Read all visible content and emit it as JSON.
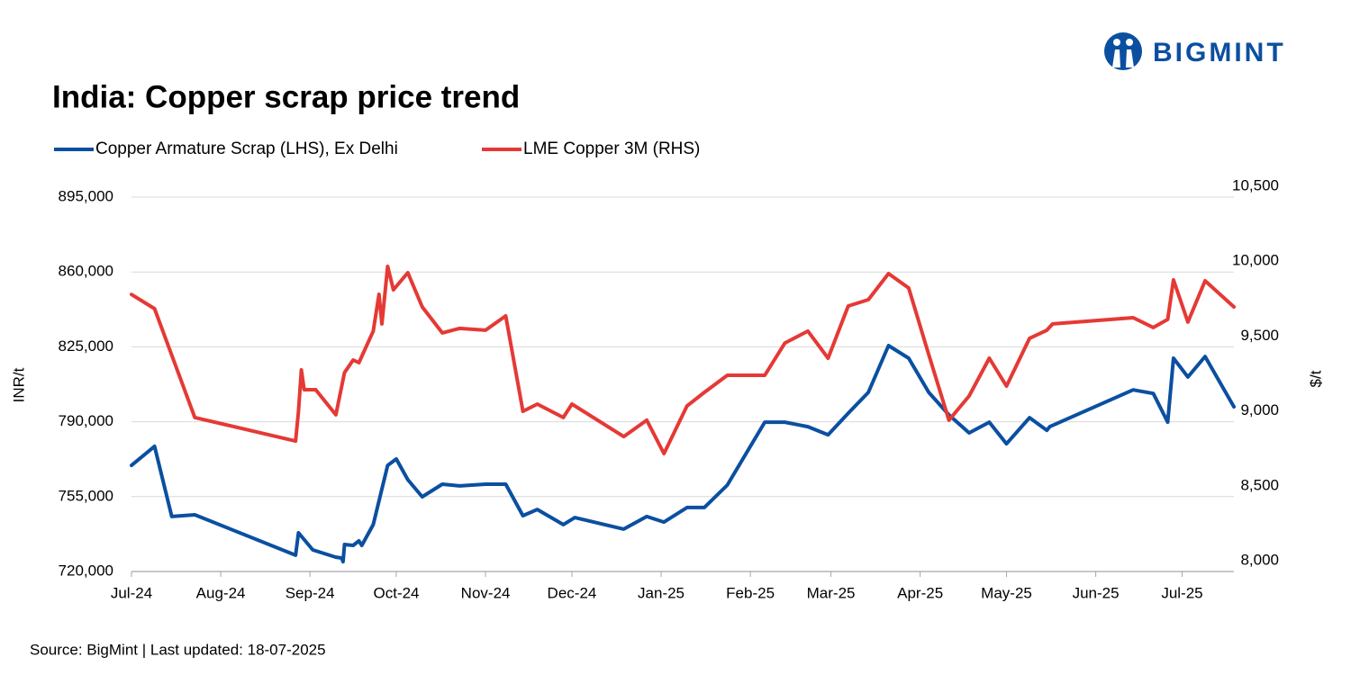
{
  "brand": "BIGMINT",
  "chart_data": {
    "type": "line",
    "title": "India: Copper scrap price trend",
    "source": "Source: BigMint | Last updated: 18-07-2025",
    "ylabel": "INR/t",
    "y2label": "$/t",
    "xlim": [
      0,
      383
    ],
    "xticks": [
      {
        "value": 0,
        "label": "Jul-24"
      },
      {
        "value": 31,
        "label": "Aug-24"
      },
      {
        "value": 62,
        "label": "Sep-24"
      },
      {
        "value": 92,
        "label": "Oct-24"
      },
      {
        "value": 123,
        "label": "Nov-24"
      },
      {
        "value": 153,
        "label": "Dec-24"
      },
      {
        "value": 184,
        "label": "Jan-25"
      },
      {
        "value": 215,
        "label": "Feb-25"
      },
      {
        "value": 243,
        "label": "Mar-25"
      },
      {
        "value": 274,
        "label": "Apr-25"
      },
      {
        "value": 304,
        "label": "May-25"
      },
      {
        "value": 335,
        "label": "Jun-25"
      },
      {
        "value": 365,
        "label": "Jul-25"
      }
    ],
    "ylim": [
      720000,
      895000
    ],
    "yticks": [
      {
        "value": 720000,
        "label": "720,000"
      },
      {
        "value": 755000,
        "label": "755,000"
      },
      {
        "value": 790000,
        "label": "790,000"
      },
      {
        "value": 825000,
        "label": "825,000"
      },
      {
        "value": 860000,
        "label": "860,000"
      },
      {
        "value": 895000,
        "label": "895,000"
      }
    ],
    "y2lim": [
      8000,
      10500
    ],
    "y2ticks": [
      {
        "value": 8000,
        "label": "8,000"
      },
      {
        "value": 8500,
        "label": "8,500"
      },
      {
        "value": 9000,
        "label": "9,000"
      },
      {
        "value": 9500,
        "label": "9,500"
      },
      {
        "value": 10000,
        "label": "10,000"
      },
      {
        "value": 10500,
        "label": "10,500"
      }
    ],
    "grid": true,
    "legend": "top",
    "series": [
      {
        "name": "Copper Armature Scrap (LHS), Ex Delhi",
        "color": "#0b4fa0",
        "x": [
          0,
          8,
          14,
          22,
          57,
          58,
          63,
          71,
          73,
          73.5,
          74,
          77,
          79,
          80,
          84,
          89,
          92,
          96,
          101,
          108,
          114,
          123,
          130,
          136,
          141,
          150,
          154,
          171,
          179,
          185,
          193,
          199,
          207,
          220,
          227,
          235,
          242,
          249,
          256,
          263,
          270,
          277,
          284,
          291,
          298,
          304,
          312,
          318,
          319,
          348,
          355,
          360,
          362,
          367,
          373,
          383
        ],
        "values": [
          769600,
          778500,
          745700,
          746500,
          727600,
          738100,
          730100,
          726700,
          726300,
          724600,
          732600,
          732200,
          734300,
          732200,
          741900,
          769600,
          772600,
          762900,
          754900,
          760800,
          760000,
          760800,
          760800,
          746100,
          749000,
          741900,
          745200,
          739800,
          745700,
          743100,
          749900,
          749900,
          760400,
          789800,
          789800,
          787700,
          783900,
          794000,
          803700,
          825600,
          819700,
          803700,
          793200,
          784800,
          789800,
          779700,
          791900,
          786000,
          787700,
          804900,
          803200,
          789800,
          819700,
          810900,
          820500,
          797000
        ]
      },
      {
        "name": "LME Copper 3M (RHS)",
        "color": "#e53935",
        "axis": "y2",
        "x": [
          0,
          8,
          22,
          57,
          58,
          59,
          60,
          64,
          71,
          74,
          77,
          79,
          84,
          86,
          87,
          89,
          91,
          96,
          101,
          108,
          114,
          123,
          130,
          136,
          141,
          150,
          153,
          171,
          179,
          185,
          193,
          199,
          207,
          220,
          227,
          235,
          242,
          249,
          256,
          263,
          270,
          277,
          284,
          291,
          298,
          304,
          312,
          318,
          320,
          348,
          355,
          360,
          362,
          367,
          373,
          383
        ],
        "values": [
          9850,
          9755,
          9028,
          8871,
          9070,
          9346,
          9214,
          9214,
          9046,
          9328,
          9412,
          9394,
          9605,
          9851,
          9653,
          10037,
          9881,
          9995,
          9767,
          9593,
          9623,
          9611,
          9707,
          9070,
          9118,
          9028,
          9118,
          8901,
          9010,
          8787,
          9106,
          9196,
          9310,
          9310,
          9526,
          9605,
          9424,
          9773,
          9815,
          9989,
          9893,
          9448,
          9010,
          9172,
          9424,
          9238,
          9557,
          9611,
          9653,
          9695,
          9629,
          9683,
          9947,
          9665,
          9941,
          9767
        ]
      }
    ]
  }
}
